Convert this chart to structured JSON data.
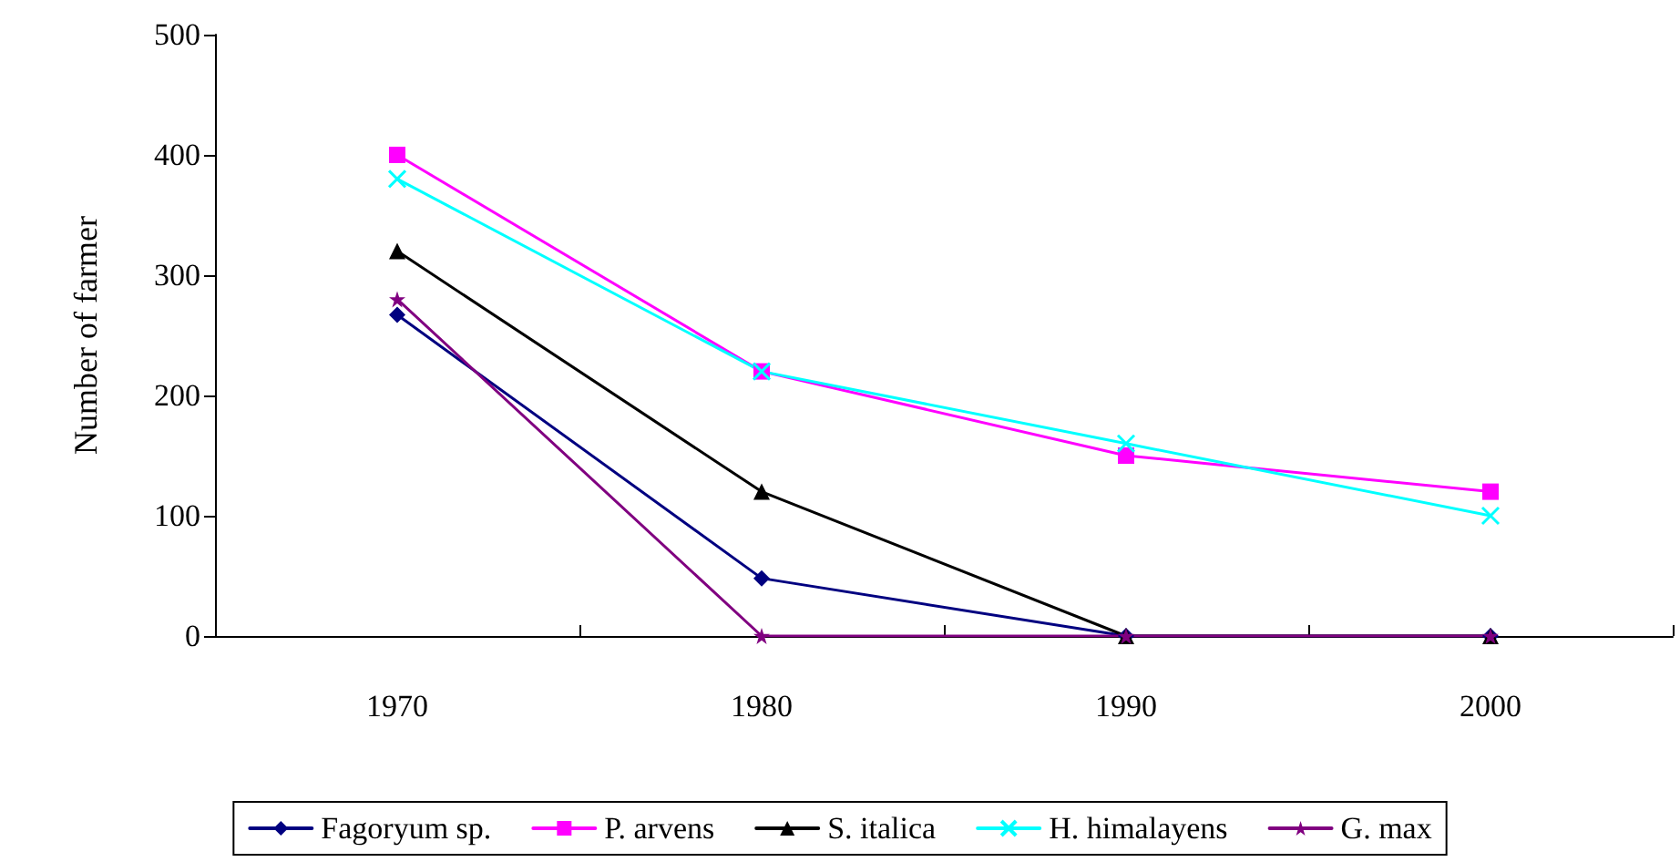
{
  "chart_data": {
    "type": "line",
    "ylabel": "Number of farmer",
    "categories": [
      "1970",
      "1980",
      "1990",
      "2000"
    ],
    "series": [
      {
        "name": "Fagoryum sp.",
        "color": "#000080",
        "marker": "diamond",
        "values": [
          267,
          48,
          0,
          0
        ]
      },
      {
        "name": "P. arvens",
        "color": "#ff00ff",
        "marker": "square",
        "values": [
          400,
          220,
          150,
          120
        ]
      },
      {
        "name": "S. italica",
        "color": "#000000",
        "marker": "triangle",
        "values": [
          320,
          120,
          0,
          0
        ]
      },
      {
        "name": "H. himalayens",
        "color": "#00ffff",
        "marker": "cross",
        "values": [
          380,
          220,
          160,
          100
        ]
      },
      {
        "name": "G. max",
        "color": "#800080",
        "marker": "star",
        "values": [
          280,
          0,
          0,
          0
        ]
      }
    ],
    "ylim": [
      0,
      500
    ],
    "yticks": [
      0,
      100,
      200,
      300,
      400,
      500
    ],
    "grid": false,
    "legend": "bottom",
    "line_style": "solid"
  }
}
